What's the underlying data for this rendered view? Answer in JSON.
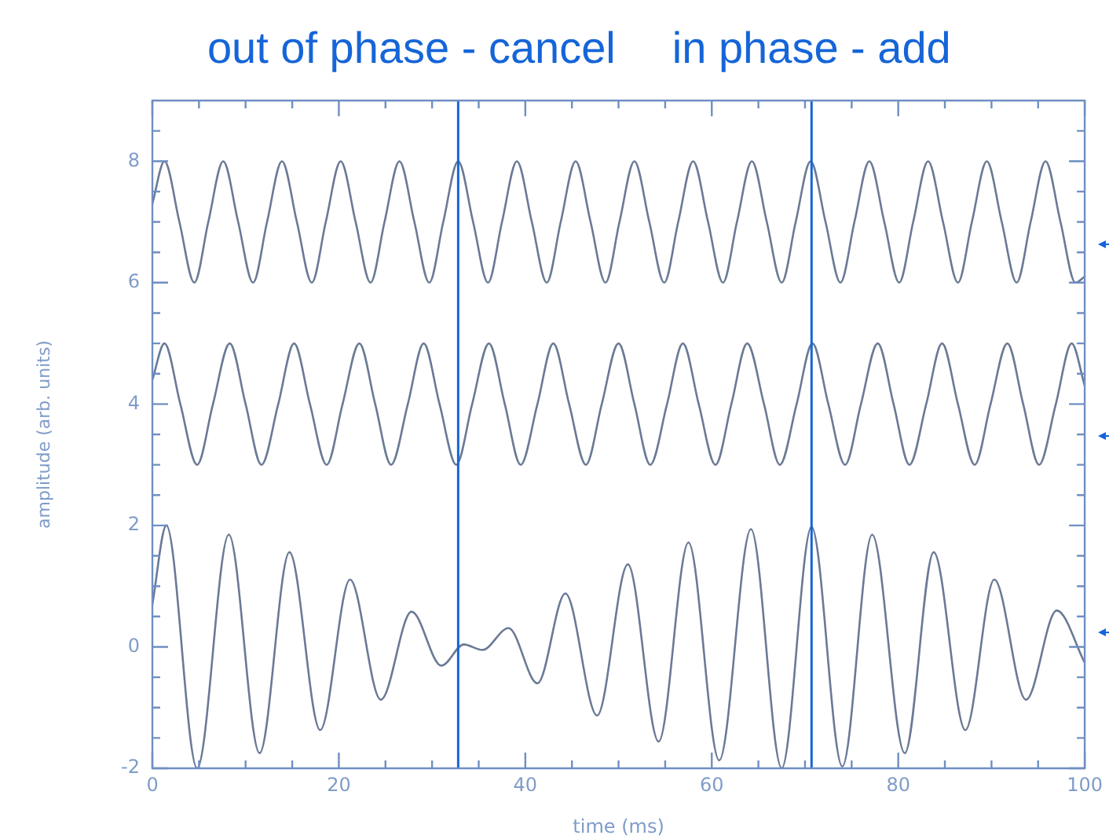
{
  "chart_data": {
    "type": "line",
    "xlabel": "time (ms)",
    "ylabel": "amplitude (arb. units)",
    "xlim": [
      0,
      100
    ],
    "ylim": [
      -2,
      9
    ],
    "xticks": [
      0,
      {
        "value": 5,
        "label": null
      },
      {
        "value": 10,
        "label": null
      },
      {
        "value": 15,
        "label": null
      },
      20,
      {
        "value": 25,
        "label": null
      },
      {
        "value": 30,
        "label": null
      },
      {
        "value": 35,
        "label": null
      },
      40,
      {
        "value": 45,
        "label": null
      },
      {
        "value": 50,
        "label": null
      },
      {
        "value": 55,
        "label": null
      },
      60,
      {
        "value": 65,
        "label": null
      },
      {
        "value": 70,
        "label": null
      },
      {
        "value": 75,
        "label": null
      },
      80,
      {
        "value": 85,
        "label": null
      },
      {
        "value": 90,
        "label": null
      },
      {
        "value": 95,
        "label": null
      },
      100
    ],
    "yticks": [
      -2,
      {
        "value": -1.5,
        "label": null
      },
      {
        "value": -1,
        "label": null
      },
      {
        "value": -0.5,
        "label": null
      },
      0,
      {
        "value": 0.5,
        "label": null
      },
      {
        "value": 1,
        "label": null
      },
      {
        "value": 1.5,
        "label": null
      },
      2,
      {
        "value": 2.5,
        "label": null
      },
      {
        "value": 3,
        "label": null
      },
      {
        "value": 3.5,
        "label": null
      },
      4,
      {
        "value": 4.5,
        "label": null
      },
      {
        "value": 5,
        "label": null
      },
      {
        "value": 5.5,
        "label": null
      },
      6,
      {
        "value": 6.5,
        "label": null
      },
      {
        "value": 7,
        "label": null
      },
      {
        "value": 7.5,
        "label": null
      },
      8,
      {
        "value": 8.5,
        "label": null
      }
    ],
    "grid": false,
    "legend": false,
    "marker": "none",
    "ref_lines": [
      {
        "axis": "x",
        "value": 32.8,
        "label": "out of phase - cancel",
        "color": "#1565d8"
      },
      {
        "axis": "x",
        "value": 70.7,
        "label": "in phase - add",
        "color": "#1565d8"
      }
    ],
    "series": [
      {
        "color": "#6a7a96",
        "x": [
          0,
          1.3,
          2.9,
          4.5,
          6.0,
          7.6,
          9.2,
          10.8,
          12.3,
          13.9,
          15.5,
          17.1,
          18.6,
          20.2,
          21.8,
          23.4,
          24.9,
          26.5,
          28.1,
          29.7,
          31.2,
          32.8,
          34.4,
          36.0,
          37.5,
          39.1,
          40.7,
          42.3,
          43.8,
          45.4,
          47.0,
          48.6,
          50.1,
          51.7,
          53.3,
          54.9,
          56.4,
          58.0,
          59.6,
          61.2,
          62.7,
          64.3,
          65.9,
          67.5,
          69.0,
          70.6,
          72.2,
          73.8,
          75.3,
          76.9,
          78.5,
          80.1,
          81.6,
          83.2,
          84.8,
          86.4,
          87.9,
          89.5,
          91.1,
          92.7,
          94.2,
          95.8,
          97.4,
          99.0,
          100
        ],
        "values": [
          7.3,
          8,
          7,
          6,
          7,
          8,
          7,
          6,
          7,
          8,
          7,
          6,
          7,
          8,
          7,
          6,
          7,
          8,
          7,
          6,
          7,
          8,
          7,
          6,
          7,
          8,
          7,
          6,
          7,
          8,
          7,
          6,
          7,
          8,
          7,
          6,
          7,
          8,
          7,
          6,
          7,
          8,
          7,
          6,
          7,
          8,
          7,
          6,
          7,
          8,
          7,
          6,
          7,
          8,
          7,
          6,
          7,
          8,
          7,
          6,
          7,
          8,
          7,
          6,
          6.1
        ]
      },
      {
        "color": "#6a7a96",
        "x": [
          0,
          1.3,
          3.0,
          4.8,
          6.5,
          8.3,
          10.0,
          11.7,
          13.5,
          15.2,
          16.9,
          18.7,
          20.4,
          22.2,
          23.9,
          25.6,
          27.4,
          29.1,
          30.8,
          32.6,
          34.3,
          36.1,
          37.8,
          39.5,
          41.3,
          43.0,
          44.7,
          46.5,
          48.2,
          50.0,
          51.7,
          53.4,
          55.2,
          56.9,
          58.6,
          60.4,
          62.1,
          63.8,
          65.6,
          67.3,
          69.1,
          70.8,
          72.5,
          74.3,
          76.0,
          77.8,
          79.5,
          81.2,
          83.0,
          84.7,
          86.4,
          88.2,
          89.9,
          91.7,
          93.4,
          95.1,
          96.9,
          98.6,
          100
        ],
        "values": [
          4.4,
          5,
          4,
          3,
          4,
          5,
          4,
          3,
          4,
          5,
          4,
          3,
          4,
          5,
          4,
          3,
          4,
          5,
          4,
          3,
          4,
          5,
          4,
          3,
          4,
          5,
          4,
          3,
          4,
          5,
          4,
          3,
          4,
          5,
          4,
          3,
          4,
          5,
          4,
          3,
          4,
          5,
          4,
          3,
          4,
          5,
          4,
          3,
          4,
          5,
          4,
          3,
          4,
          5,
          4,
          3,
          4,
          5,
          4.3
        ]
      },
      {
        "color": "#6a7a96",
        "x": [
          0,
          1.5,
          4.8,
          8.2,
          11.5,
          14.7,
          18.0,
          21.2,
          24.5,
          27.8,
          31.0,
          33.4,
          35.4,
          38.2,
          41.3,
          44.3,
          47.7,
          51.0,
          54.3,
          57.5,
          60.8,
          64.2,
          67.5,
          70.7,
          74.0,
          77.2,
          80.7,
          83.8,
          87.2,
          90.3,
          93.7,
          97.0,
          100
        ],
        "values": [
          0.7,
          2.0,
          -2.0,
          1.85,
          -1.75,
          1.56,
          -1.37,
          1.11,
          -0.87,
          0.58,
          -0.31,
          0.04,
          -0.05,
          0.31,
          -0.6,
          0.88,
          -1.13,
          1.36,
          -1.56,
          1.72,
          -1.87,
          1.94,
          -2.0,
          1.98,
          -1.97,
          1.85,
          -1.75,
          1.56,
          -1.37,
          1.11,
          -0.87,
          0.6,
          -0.26
        ]
      }
    ]
  }
}
